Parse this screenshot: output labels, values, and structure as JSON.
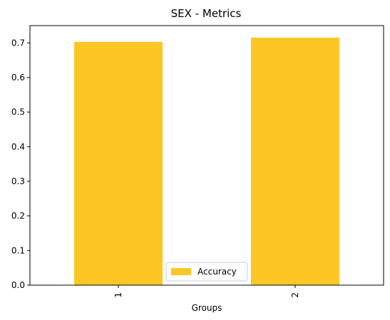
{
  "chart_data": {
    "type": "bar",
    "title": "SEX - Metrics",
    "xlabel": "Groups",
    "ylabel": "",
    "categories": [
      "1",
      "2"
    ],
    "series": [
      {
        "name": "Accuracy",
        "values": [
          0.703,
          0.715
        ],
        "color": "#fcc624"
      }
    ],
    "yticks": [
      "0.0",
      "0.1",
      "0.2",
      "0.3",
      "0.4",
      "0.5",
      "0.6",
      "0.7"
    ],
    "ylim": [
      0,
      0.75
    ],
    "grid": false,
    "legend_position": "bottom-center"
  }
}
